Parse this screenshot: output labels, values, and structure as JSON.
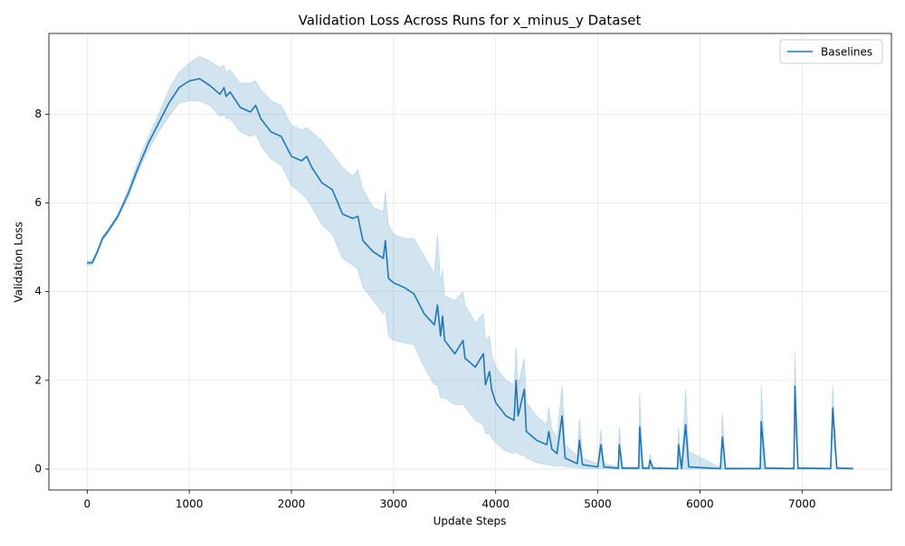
{
  "chart_data": {
    "type": "line",
    "title": "Validation Loss Across Runs for x_minus_y Dataset",
    "xlabel": "Update Steps",
    "ylabel": "Validation Loss",
    "x": [
      0,
      50,
      100,
      150,
      200,
      300,
      400,
      500,
      600,
      700,
      800,
      900,
      1000,
      1100,
      1200,
      1300,
      1340,
      1360,
      1400,
      1500,
      1600,
      1650,
      1700,
      1800,
      1900,
      2000,
      2100,
      2150,
      2200,
      2300,
      2400,
      2500,
      2600,
      2650,
      2700,
      2800,
      2900,
      2920,
      2950,
      3000,
      3100,
      3200,
      3300,
      3400,
      3430,
      3460,
      3480,
      3500,
      3600,
      3680,
      3700,
      3800,
      3880,
      3900,
      3940,
      3960,
      4000,
      4100,
      4180,
      4200,
      4220,
      4280,
      4300,
      4400,
      4500,
      4520,
      4550,
      4600,
      4650,
      4680,
      4800,
      4820,
      4850,
      5000,
      5030,
      5060,
      5200,
      5210,
      5240,
      5400,
      5410,
      5440,
      5500,
      5510,
      5540,
      5780,
      5790,
      5820,
      5860,
      5890,
      6200,
      6220,
      6250,
      6590,
      6600,
      6640,
      6920,
      6930,
      6960,
      7280,
      7300,
      7340,
      7500
    ],
    "series": [
      {
        "name": "Baselines",
        "color": "#1f77b4",
        "values": [
          4.65,
          4.65,
          4.9,
          5.2,
          5.35,
          5.7,
          6.2,
          6.8,
          7.35,
          7.8,
          8.25,
          8.6,
          8.75,
          8.8,
          8.65,
          8.45,
          8.6,
          8.4,
          8.5,
          8.15,
          8.05,
          8.2,
          7.9,
          7.6,
          7.5,
          7.05,
          6.95,
          7.05,
          6.8,
          6.45,
          6.3,
          5.75,
          5.65,
          5.7,
          5.15,
          4.9,
          4.75,
          5.15,
          4.3,
          4.2,
          4.1,
          3.95,
          3.5,
          3.25,
          3.7,
          3.0,
          3.45,
          2.9,
          2.6,
          2.9,
          2.5,
          2.3,
          2.6,
          1.9,
          2.2,
          1.8,
          1.5,
          1.2,
          1.1,
          2.0,
          1.2,
          1.8,
          0.85,
          0.65,
          0.55,
          0.85,
          0.45,
          0.35,
          1.2,
          0.25,
          0.12,
          0.65,
          0.1,
          0.05,
          0.55,
          0.05,
          0.02,
          0.55,
          0.02,
          0.02,
          0.95,
          0.02,
          0.02,
          0.2,
          0.02,
          0.01,
          0.55,
          0.01,
          1.0,
          0.05,
          0.01,
          0.72,
          0.01,
          0.01,
          1.07,
          0.02,
          0.01,
          1.87,
          0.02,
          0.01,
          1.38,
          0.02,
          0.01
        ],
        "lower": [
          4.6,
          4.6,
          4.85,
          5.15,
          5.3,
          5.65,
          6.1,
          6.7,
          7.2,
          7.6,
          7.95,
          8.25,
          8.3,
          8.3,
          8.2,
          7.95,
          8.0,
          7.9,
          7.9,
          7.6,
          7.5,
          7.55,
          7.3,
          7.0,
          6.85,
          6.4,
          6.2,
          6.1,
          5.9,
          5.5,
          5.3,
          4.75,
          4.6,
          4.5,
          4.1,
          3.8,
          3.5,
          3.6,
          3.0,
          2.9,
          2.85,
          2.8,
          2.3,
          1.9,
          1.9,
          1.6,
          1.6,
          1.6,
          1.45,
          1.45,
          1.4,
          1.1,
          1.0,
          0.8,
          0.8,
          0.7,
          0.6,
          0.4,
          0.35,
          0.4,
          0.35,
          0.3,
          0.25,
          0.15,
          0.1,
          0.1,
          0.08,
          0.06,
          0.08,
          0.05,
          0.03,
          0.03,
          0.02,
          0.01,
          0.02,
          0.01,
          0,
          0.02,
          0,
          0,
          0.05,
          0,
          0,
          0,
          0,
          0,
          0,
          0,
          0,
          0,
          0,
          0,
          0,
          0,
          0,
          0,
          0,
          1.0,
          0,
          0,
          0.8,
          0,
          0
        ],
        "upper": [
          4.7,
          4.7,
          4.95,
          5.25,
          5.4,
          5.75,
          6.3,
          6.95,
          7.5,
          8.0,
          8.55,
          8.95,
          9.15,
          9.3,
          9.2,
          9.05,
          9.1,
          8.95,
          9.0,
          8.7,
          8.7,
          8.75,
          8.55,
          8.3,
          8.2,
          7.75,
          7.65,
          7.7,
          7.6,
          7.4,
          7.1,
          6.8,
          6.6,
          6.75,
          6.3,
          5.9,
          5.8,
          6.25,
          5.5,
          5.3,
          5.2,
          5.2,
          4.8,
          4.4,
          5.3,
          4.2,
          4.5,
          3.9,
          3.8,
          4.0,
          3.7,
          3.3,
          3.5,
          2.9,
          3.0,
          2.6,
          2.3,
          2.0,
          1.9,
          2.75,
          1.9,
          2.5,
          1.5,
          1.2,
          1.0,
          1.4,
          0.9,
          0.7,
          1.9,
          0.55,
          0.3,
          1.15,
          0.25,
          0.12,
          0.9,
          0.12,
          0.06,
          0.98,
          0.06,
          0.05,
          1.72,
          0.06,
          0.05,
          0.35,
          0.05,
          0.03,
          0.95,
          0.04,
          1.8,
          0.4,
          0.03,
          1.27,
          0.04,
          0.03,
          1.9,
          0.05,
          0.03,
          2.65,
          0.05,
          0.03,
          1.9,
          0.05,
          0.03
        ]
      }
    ],
    "xlim": [
      -375,
      7875
    ],
    "ylim": [
      -0.47,
      9.82
    ],
    "xticks": [
      0,
      1000,
      2000,
      3000,
      4000,
      5000,
      6000,
      7000
    ],
    "yticks": [
      0,
      2,
      4,
      6,
      8
    ],
    "grid": true,
    "legend": "upper right"
  }
}
